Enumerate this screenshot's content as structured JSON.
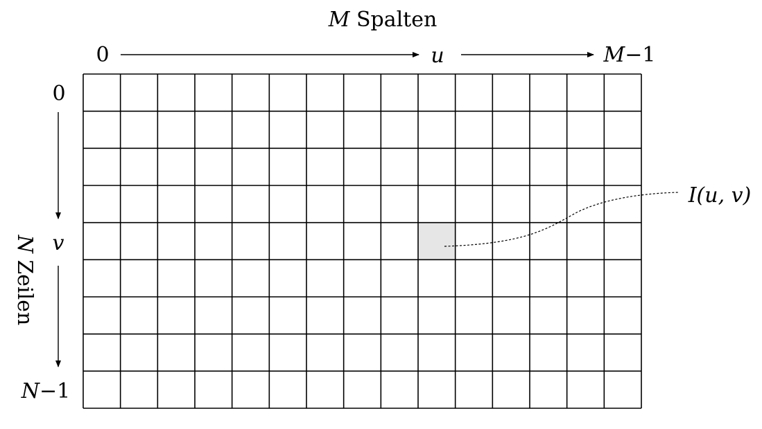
{
  "diagram": {
    "columns_label": {
      "symbol": "M",
      "text": " Spalten"
    },
    "rows_label": {
      "symbol": "N",
      "text": " Zeilen"
    },
    "col_start": "0",
    "col_mid": "u",
    "col_end": {
      "symbol": "M",
      "suffix": "−1"
    },
    "row_start": "0",
    "row_mid": "v",
    "row_end": {
      "symbol": "N",
      "suffix": "−1"
    },
    "pixel_label": "I(u, v)",
    "grid": {
      "columns": 15,
      "rows": 9,
      "highlight_col": 9,
      "highlight_row": 4
    },
    "colors": {
      "highlight": "#e6e6e6",
      "line": "#000000"
    }
  }
}
